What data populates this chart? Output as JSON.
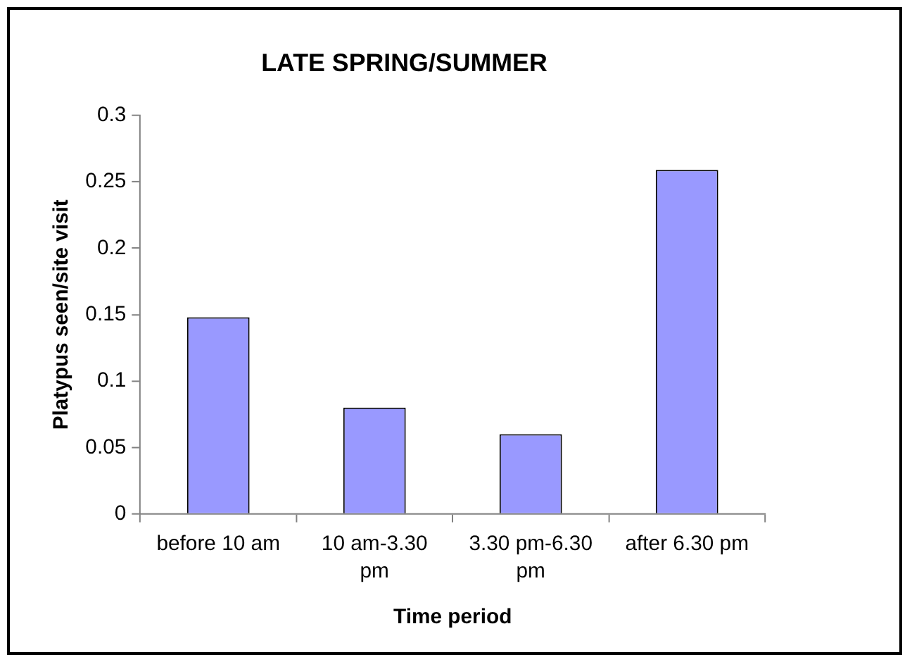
{
  "chart_data": {
    "type": "bar",
    "title": "LATE SPRING/SUMMER",
    "xlabel": "Time period",
    "ylabel": "Platypus seen/site visit",
    "categories": [
      "before 10 am",
      "10 am-3.30 pm",
      "3.30 pm-6.30 pm",
      "after 6.30 pm"
    ],
    "values": [
      0.148,
      0.08,
      0.06,
      0.259
    ],
    "color": "#9999ff",
    "ylim": [
      0,
      0.3
    ],
    "yticks": [
      0,
      0.05,
      0.1,
      0.15,
      0.2,
      0.25,
      0.3
    ],
    "grid": false,
    "legend": false
  }
}
